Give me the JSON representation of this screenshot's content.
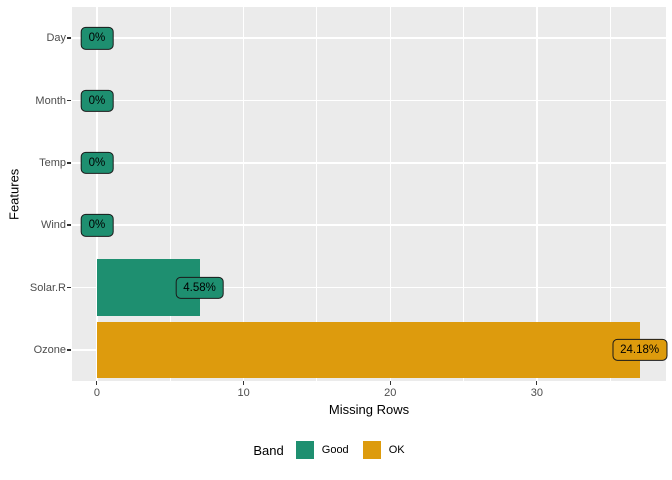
{
  "chart_data": {
    "type": "bar",
    "orientation": "horizontal",
    "title": "",
    "xlabel": "Missing Rows",
    "ylabel": "Features",
    "categories": [
      "Day",
      "Month",
      "Temp",
      "Wind",
      "Solar.R",
      "Ozone"
    ],
    "values": [
      0,
      0,
      0,
      0,
      7,
      37
    ],
    "percent_labels": [
      "0%",
      "0%",
      "0%",
      "0%",
      "4.58%",
      "24.18%"
    ],
    "bands": [
      "Good",
      "Good",
      "Good",
      "Good",
      "Good",
      "OK"
    ],
    "x_ticks": [
      0,
      10,
      20,
      30
    ],
    "x_minor_ticks": [
      5,
      15,
      25,
      35
    ],
    "xlim": [
      -1.7,
      38.8
    ],
    "legend": {
      "title": "Band",
      "entries": [
        {
          "label": "Good",
          "color": "#1E8F70"
        },
        {
          "label": "OK",
          "color": "#DD9B0D"
        }
      ]
    },
    "band_colors": {
      "Good": "#1E8F70",
      "OK": "#DD9B0D"
    },
    "panel_bg": "#EBEBEB",
    "grid_color": "#FFFFFF",
    "tick_label_color": "#4D4D4D",
    "grid": true,
    "legend_position": "bottom"
  }
}
